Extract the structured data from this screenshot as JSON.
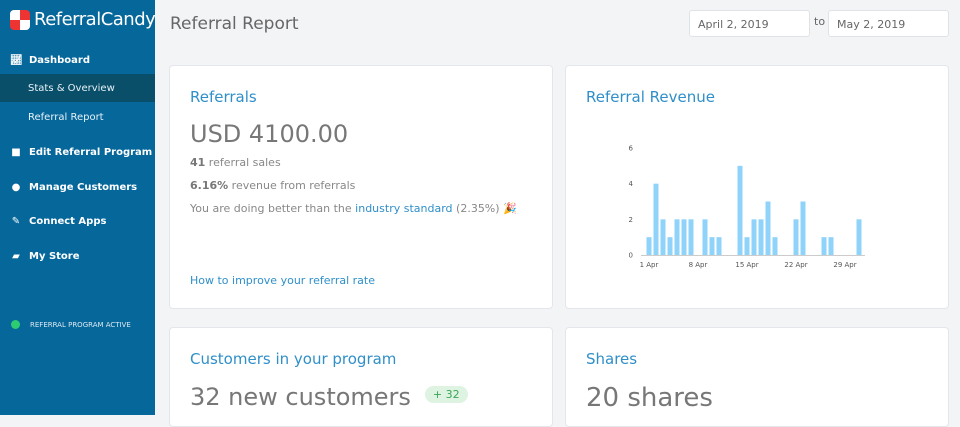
{
  "app": {
    "logo": "ReferralCandy"
  },
  "sidebar": {
    "items": [
      {
        "label": "Dashboard",
        "icon": "chart-line-icon"
      },
      {
        "label": "Stats & Overview"
      },
      {
        "label": "Referral Report"
      },
      {
        "label": "Edit Referral Program",
        "icon": "gift-icon"
      },
      {
        "label": "Manage Customers",
        "icon": "users-icon"
      },
      {
        "label": "Connect Apps",
        "icon": "plug-icon"
      },
      {
        "label": "My Store",
        "icon": "shopping-bag-icon"
      }
    ],
    "status": "REFERRAL PROGRAM ACTIVE",
    "status_color": "#2ecc71"
  },
  "header": {
    "title": "Referral Report",
    "date_from": "April 2, 2019",
    "date_sep": "to",
    "date_to": "May 2, 2019"
  },
  "referrals": {
    "title": "Referrals",
    "amount": "USD 4100.00",
    "sales_count": "41",
    "sales_label": " referral sales",
    "rev_pct": "6.16%",
    "rev_label": " revenue from referrals",
    "better_prefix": "You are doing better than the ",
    "better_link": "industry standard",
    "better_suffix": " (2.35%) 🎉",
    "improve_link": "How to improve your referral rate"
  },
  "revenue": {
    "title": "Referral Revenue"
  },
  "customers": {
    "title": "Customers in your program",
    "value": "32 new customers",
    "badge": "+ 32"
  },
  "shares": {
    "title": "Shares",
    "value": "20 shares"
  },
  "chart_data": {
    "type": "bar",
    "x": [
      "1 Apr",
      "2 Apr",
      "3 Apr",
      "4 Apr",
      "5 Apr",
      "6 Apr",
      "7 Apr",
      "8 Apr",
      "9 Apr",
      "10 Apr",
      "11 Apr",
      "12 Apr",
      "13 Apr",
      "14 Apr",
      "15 Apr",
      "16 Apr",
      "17 Apr",
      "18 Apr",
      "19 Apr",
      "20 Apr",
      "21 Apr",
      "22 Apr",
      "23 Apr",
      "24 Apr",
      "25 Apr",
      "26 Apr",
      "27 Apr",
      "28 Apr",
      "29 Apr",
      "30 Apr",
      "1 May"
    ],
    "values": [
      1,
      4,
      2,
      1,
      2,
      2,
      2,
      0,
      2,
      1,
      1,
      0,
      0,
      5,
      1,
      2,
      2,
      3,
      1,
      0,
      0,
      2,
      3,
      0,
      0,
      1,
      1,
      0,
      0,
      0,
      2
    ],
    "xticks": [
      "1 Apr",
      "8 Apr",
      "15 Apr",
      "22 Apr",
      "29 Apr"
    ],
    "yticks": [
      0,
      2,
      4,
      6
    ],
    "ylim": [
      0,
      6
    ],
    "bar_color": "#8fd3fb",
    "grid": false
  }
}
